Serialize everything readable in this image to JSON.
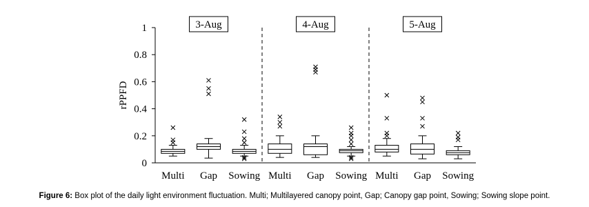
{
  "chart_data": {
    "type": "box",
    "ylabel": "rPPFD",
    "ylim": [
      0,
      1
    ],
    "yticks": [
      0,
      0.2,
      0.4,
      0.6,
      0.8,
      1
    ],
    "groups": [
      {
        "label": "3-Aug",
        "boxes": [
          {
            "category": "Multi",
            "whislo": 0.05,
            "q1": 0.07,
            "median": 0.085,
            "q3": 0.1,
            "whishi": 0.13,
            "fliers": [
              0.15,
              0.17,
              0.26
            ]
          },
          {
            "category": "Gap",
            "whislo": 0.035,
            "q1": 0.1,
            "median": 0.12,
            "q3": 0.14,
            "whishi": 0.18,
            "fliers": [
              0.51,
              0.55,
              0.61
            ]
          },
          {
            "category": "Sowing",
            "whislo": 0.05,
            "q1": 0.07,
            "median": 0.085,
            "q3": 0.1,
            "whishi": 0.13,
            "fliers": [
              0.03,
              0.04,
              0.15,
              0.18,
              0.23,
              0.32
            ]
          }
        ]
      },
      {
        "label": "4-Aug",
        "boxes": [
          {
            "category": "Multi",
            "whislo": 0.04,
            "q1": 0.07,
            "median": 0.1,
            "q3": 0.14,
            "whishi": 0.2,
            "fliers": [
              0.27,
              0.3,
              0.34
            ]
          },
          {
            "category": "Gap",
            "whislo": 0.04,
            "q1": 0.06,
            "median": 0.12,
            "q3": 0.14,
            "whishi": 0.2,
            "fliers": [
              0.67,
              0.69,
              0.71
            ]
          },
          {
            "category": "Sowing",
            "whislo": 0.05,
            "q1": 0.075,
            "median": 0.09,
            "q3": 0.1,
            "whishi": 0.12,
            "fliers": [
              0.03,
              0.04,
              0.14,
              0.17,
              0.2,
              0.22,
              0.26
            ]
          }
        ]
      },
      {
        "label": "5-Aug",
        "boxes": [
          {
            "category": "Multi",
            "whislo": 0.05,
            "q1": 0.08,
            "median": 0.1,
            "q3": 0.13,
            "whishi": 0.18,
            "fliers": [
              0.2,
              0.22,
              0.33,
              0.5
            ]
          },
          {
            "category": "Gap",
            "whislo": 0.03,
            "q1": 0.065,
            "median": 0.1,
            "q3": 0.14,
            "whishi": 0.2,
            "fliers": [
              0.27,
              0.33,
              0.45,
              0.48
            ]
          },
          {
            "category": "Sowing",
            "whislo": 0.03,
            "q1": 0.06,
            "median": 0.075,
            "q3": 0.09,
            "whishi": 0.12,
            "fliers": [
              0.17,
              0.19,
              0.22
            ]
          }
        ]
      }
    ]
  },
  "caption": {
    "label": "Figure 6:",
    "text": " Box plot of the daily light environment fluctuation. Multi; Multilayered canopy point, Gap; Canopy gap point, Sowing; Sowing slope point."
  }
}
